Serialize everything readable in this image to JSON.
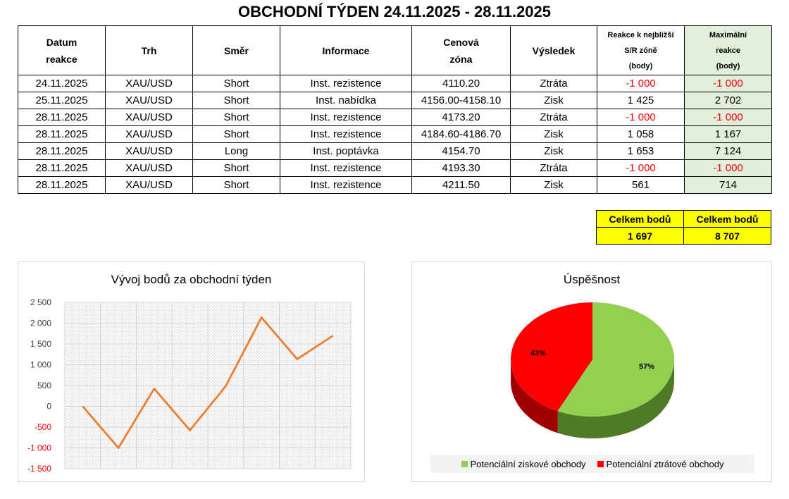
{
  "title": "OBCHODNÍ TÝDEN 24.11.2025 - 28.11.2025",
  "table": {
    "headers": {
      "date": [
        "Datum",
        "reakce"
      ],
      "market": "Trh",
      "direction": "Směr",
      "info": "Informace",
      "zone": [
        "Cenová",
        "zóna"
      ],
      "result": "Výsledek",
      "reaction": [
        "Reakce k nejbližší",
        "S/R zóně",
        "(body)"
      ],
      "max": [
        "Maximální",
        "reakce",
        "(body)"
      ]
    },
    "rows": [
      [
        "24.11.2025",
        "XAU/USD",
        "Short",
        "Inst. rezistence",
        "4110.20",
        "Ztráta",
        "-1 000",
        "-1 000"
      ],
      [
        "25.11.2025",
        "XAU/USD",
        "Short",
        "Inst. nabídka",
        "4156.00-4158.10",
        "Zisk",
        "1 425",
        "2 702"
      ],
      [
        "28.11.2025",
        "XAU/USD",
        "Short",
        "Inst. rezistence",
        "4173.20",
        "Ztráta",
        "-1 000",
        "-1 000"
      ],
      [
        "28.11.2025",
        "XAU/USD",
        "Short",
        "Inst. rezistence",
        "4184.60-4186.70",
        "Zisk",
        "1 058",
        "1 167"
      ],
      [
        "28.11.2025",
        "XAU/USD",
        "Long",
        "Inst. poptávka",
        "4154.70",
        "Zisk",
        "1 653",
        "7 124"
      ],
      [
        "28.11.2025",
        "XAU/USD",
        "Short",
        "Inst. rezistence",
        "4193.30",
        "Ztráta",
        "-1 000",
        "-1 000"
      ],
      [
        "28.11.2025",
        "XAU/USD",
        "Short",
        "Inst. rezistence",
        "4211.50",
        "Zisk",
        "561",
        "714"
      ]
    ]
  },
  "totals": {
    "reaction_label": "Celkem bodů",
    "reaction_value": "1 697",
    "max_label": "Celkem bodů",
    "max_value": "8 707"
  },
  "colors": {
    "negative_text": "#ff0000",
    "max_column_bg": "#e2efda",
    "totals_bg": "#ffff00",
    "line": "#ed7d31",
    "pie_profit": "#92d050",
    "pie_profit_side": "#4f7a26",
    "pie_loss": "#ff0000",
    "pie_loss_side": "#a00000"
  },
  "chart_data": [
    {
      "type": "line",
      "title": "Vývoj bodů za obchodní týden",
      "x": [
        1,
        2,
        3,
        4,
        5,
        6,
        7,
        8
      ],
      "values": [
        0,
        -1000,
        425,
        -575,
        483,
        2136,
        1136,
        1697
      ],
      "ylim": [
        -1500,
        2500
      ],
      "yticks": [
        2500,
        2000,
        1500,
        1000,
        500,
        0,
        -500,
        -1000,
        -1500
      ],
      "ytick_labels": [
        "2 500",
        "2 000",
        "1 500",
        "1 000",
        "500",
        "0",
        "-500",
        "-1 000",
        "-1 500"
      ],
      "negative_tick_color": "#ff0000",
      "grid": true
    },
    {
      "type": "pie",
      "title": "Úspěšnost",
      "labels": [
        "Potenciální ziskové obchody",
        "Potenciální ztrátové obchody"
      ],
      "values": [
        57,
        43
      ],
      "value_labels": [
        "57%",
        "43%"
      ],
      "legend_position": "bottom",
      "style": "3d"
    }
  ]
}
